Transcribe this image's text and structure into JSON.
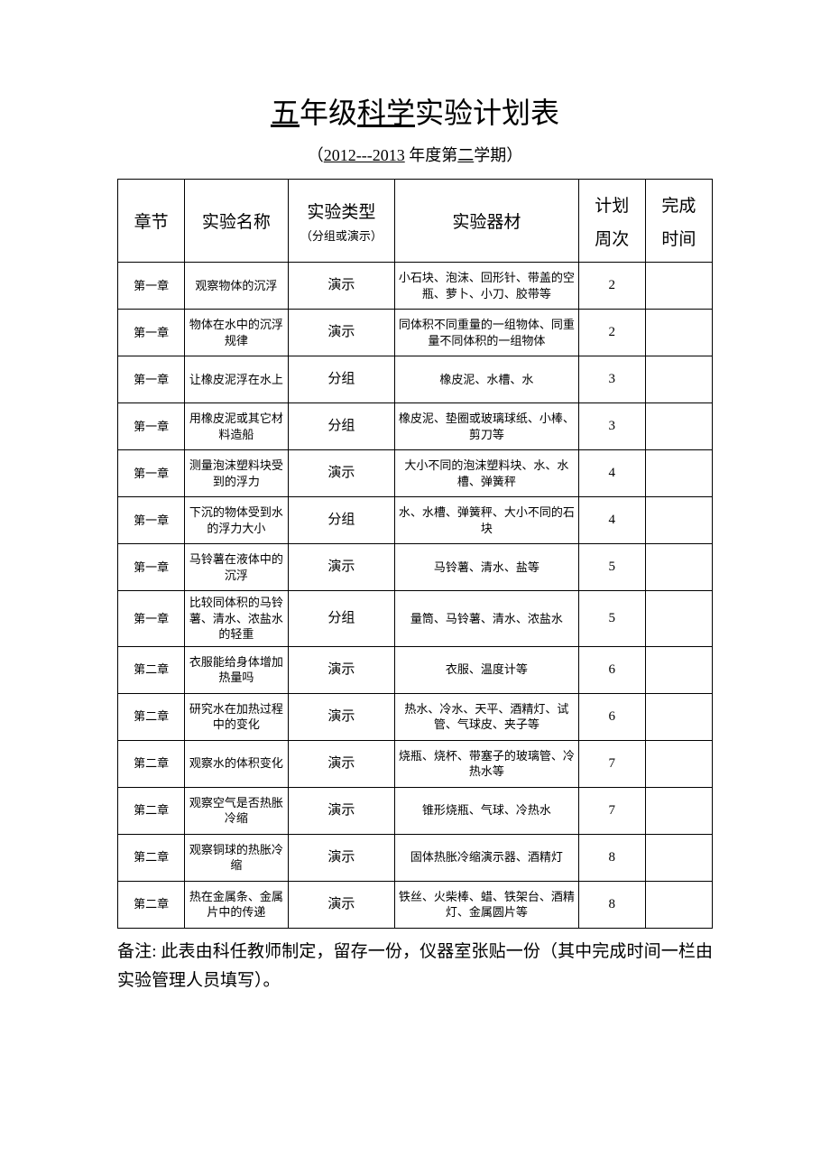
{
  "title": {
    "part1": "五",
    "part2": "年级",
    "part3": "科学",
    "part4": "实验计划表"
  },
  "subtitle": {
    "open": "（",
    "part1": "2012---2013",
    "mid": " 年度第",
    "part2": "二",
    "end": "学期）"
  },
  "headers": {
    "chapter": "章节",
    "name": "实验名称",
    "type_main": "实验类型",
    "type_sub": "（分组或演示）",
    "equipment": "实验器材",
    "week_l1": "计划",
    "week_l2": "周次",
    "done_l1": "完成",
    "done_l2": "时间"
  },
  "rows": [
    {
      "chapter": "第一章",
      "name": "观察物体的沉浮",
      "type": "演示",
      "equipment": "小石块、泡沫、回形针、带盖的空瓶、萝卜、小刀、胶带等",
      "week": "2",
      "done": ""
    },
    {
      "chapter": "第一章",
      "name": "物体在水中的沉浮规律",
      "type": "演示",
      "equipment": "同体积不同重量的一组物体、同重量不同体积的一组物体",
      "week": "2",
      "done": ""
    },
    {
      "chapter": "第一章",
      "name": "让橡皮泥浮在水上",
      "type": "分组",
      "equipment": "橡皮泥、水槽、水",
      "week": "3",
      "done": ""
    },
    {
      "chapter": "第一章",
      "name": "用橡皮泥或其它材料造船",
      "type": "分组",
      "equipment": "橡皮泥、垫圈或玻璃球纸、小棒、剪刀等",
      "week": "3",
      "done": ""
    },
    {
      "chapter": "第一章",
      "name": "测量泡沫塑料块受到的浮力",
      "type": "演示",
      "equipment": "大小不同的泡沫塑料块、水、水槽、弹簧秤",
      "week": "4",
      "done": ""
    },
    {
      "chapter": "第一章",
      "name": "下沉的物体受到水的浮力大小",
      "type": "分组",
      "equipment": "水、水槽、弹簧秤、大小不同的石块",
      "week": "4",
      "done": ""
    },
    {
      "chapter": "第一章",
      "name": "马铃薯在液体中的沉浮",
      "type": "演示",
      "equipment": "马铃薯、清水、盐等",
      "week": "5",
      "done": ""
    },
    {
      "chapter": "第一章",
      "name": "比较同体积的马铃薯、清水、浓盐水的轻重",
      "type": "分组",
      "equipment": "量筒、马铃薯、清水、浓盐水",
      "week": "5",
      "done": ""
    },
    {
      "chapter": "第二章",
      "name": "衣服能给身体增加热量吗",
      "type": "演示",
      "equipment": "衣服、温度计等",
      "week": "6",
      "done": ""
    },
    {
      "chapter": "第二章",
      "name": "研究水在加热过程中的变化",
      "type": "演示",
      "equipment": "热水、冷水、天平、酒精灯、试管、气球皮、夹子等",
      "week": "6",
      "done": ""
    },
    {
      "chapter": "第二章",
      "name": "观察水的体积变化",
      "type": "演示",
      "equipment": "烧瓶、烧杯、带塞子的玻璃管、冷热水等",
      "week": "7",
      "done": ""
    },
    {
      "chapter": "第二章",
      "name": "观察空气是否热胀冷缩",
      "type": "演示",
      "equipment": "锥形烧瓶、气球、冷热水",
      "week": "7",
      "done": ""
    },
    {
      "chapter": "第二章",
      "name": "观察铜球的热胀冷缩",
      "type": "演示",
      "equipment": "固体热胀冷缩演示器、酒精灯",
      "week": "8",
      "done": ""
    },
    {
      "chapter": "第二章",
      "name": "热在金属条、金属片中的传递",
      "type": "演示",
      "equipment": "铁丝、火柴棒、蜡、铁架台、酒精灯、金属圆片等",
      "week": "8",
      "done": ""
    }
  ],
  "footnote": "备注: 此表由科任教师制定，留存一份，仪器室张贴一份（其中完成时间一栏由实验管理人员填写）。"
}
